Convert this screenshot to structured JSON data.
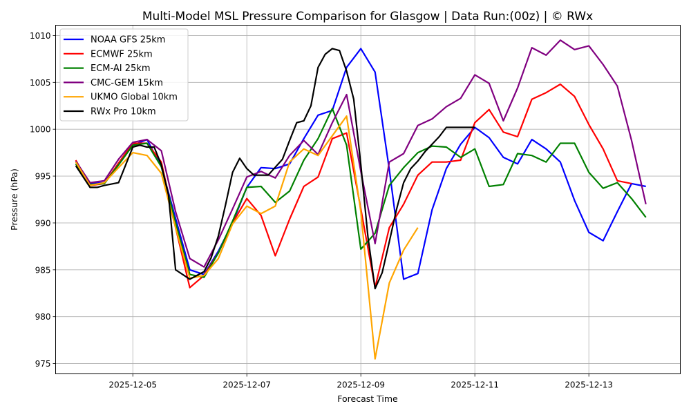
{
  "chart_data": {
    "type": "line",
    "title": "Multi-Model MSL Pressure Comparison for Glasgow | Data Run:(00z) | © RWx",
    "xlabel": "Forecast Time",
    "ylabel": "Pressure (hPa)",
    "x_unit": "hours since 2025-12-04 00:00",
    "xlim": [
      -8.5,
      254.5
    ],
    "ylim": [
      973.9,
      1011.1
    ],
    "grid": true,
    "legend_position": "top-left",
    "x_ticks": [
      {
        "hours": 24,
        "label": "2025-12-05"
      },
      {
        "hours": 72,
        "label": "2025-12-07"
      },
      {
        "hours": 120,
        "label": "2025-12-09"
      },
      {
        "hours": 168,
        "label": "2025-12-11"
      },
      {
        "hours": 216,
        "label": "2025-12-13"
      }
    ],
    "y_ticks": [
      975,
      980,
      985,
      990,
      995,
      1000,
      1005,
      1010
    ],
    "series": [
      {
        "name": "NOAA GFS 25km",
        "color": "#0000ff",
        "step_hours": 6,
        "values": [
          996.3,
          994.2,
          994.3,
          996.3,
          998.3,
          998.9,
          996.0,
          990.5,
          985.0,
          984.5,
          987.0,
          990.0,
          993.8,
          995.9,
          995.8,
          996.3,
          999.0,
          1001.5,
          1002.0,
          1006.6,
          1008.6,
          1006.1,
          995.7,
          984.0,
          984.6,
          991.4,
          995.8,
          998.4,
          1000.2,
          999.1,
          997.0,
          996.3,
          998.9,
          997.9,
          996.5,
          992.4,
          989.0,
          988.1,
          991.2,
          994.2,
          993.9
        ]
      },
      {
        "name": "ECMWF 25km",
        "color": "#ff0000",
        "step_hours": 6,
        "values": [
          996.7,
          994.0,
          994.2,
          996.4,
          998.5,
          998.5,
          996.5,
          989.5,
          983.1,
          984.4,
          986.8,
          990.0,
          992.6,
          990.8,
          986.5,
          990.4,
          993.9,
          994.9,
          999.0,
          999.6,
          991.5,
          983.1,
          989.5,
          992.0,
          995.1,
          996.5,
          996.5,
          996.7,
          1000.7,
          1002.1,
          999.7,
          999.2,
          1003.2,
          1003.9,
          1004.8,
          1003.5,
          1000.5,
          997.9,
          994.5,
          994.2
        ]
      },
      {
        "name": "ECM-AI 25km",
        "color": "#008000",
        "step_hours": 6,
        "values": [
          996.3,
          994.1,
          994.2,
          996.2,
          998.3,
          998.5,
          996.0,
          990.0,
          984.5,
          984.2,
          986.8,
          990.2,
          993.8,
          993.9,
          992.2,
          993.4,
          996.7,
          999.0,
          1002.2,
          998.3,
          987.2,
          988.9,
          994.0,
          995.9,
          997.5,
          998.2,
          998.1,
          997.0,
          997.9,
          993.9,
          994.1,
          997.4,
          997.2,
          996.5,
          998.5,
          998.5,
          995.4,
          993.7,
          994.3,
          992.6,
          990.6
        ]
      },
      {
        "name": "CMC-GEM 15km",
        "color": "#800080",
        "step_hours": 6,
        "values": [
          996.6,
          994.3,
          994.5,
          996.8,
          998.6,
          998.9,
          997.7,
          991.2,
          986.2,
          985.3,
          988.2,
          991.5,
          994.9,
          995.5,
          994.8,
          997.2,
          998.8,
          997.3,
          1000.7,
          1003.7,
          995.5,
          987.8,
          996.5,
          997.4,
          1000.4,
          1001.1,
          1002.4,
          1003.3,
          1005.8,
          1004.9,
          1000.9,
          1004.4,
          1008.7,
          1007.9,
          1009.5,
          1008.5,
          1008.9,
          1006.9,
          1004.6,
          998.8,
          992.0
        ]
      },
      {
        "name": "UKMO Global 10km",
        "color": "#ffa500",
        "step_hours": 6,
        "values": [
          996.5,
          994.0,
          994.3,
          995.9,
          997.5,
          997.2,
          995.3,
          989.5,
          984.1,
          984.4,
          986.2,
          989.9,
          991.8,
          991.0,
          991.8,
          996.5,
          997.9,
          997.2,
          999.3,
          1001.4,
          991.2,
          975.5,
          983.6,
          987.1,
          989.5
        ]
      },
      {
        "name": "RWx Pro 10km",
        "color": "#000000",
        "hours": [
          0,
          6,
          9,
          12,
          18,
          21,
          24,
          27,
          30,
          33,
          36,
          39,
          42,
          48,
          54,
          57,
          60,
          63,
          66,
          69,
          72,
          75,
          81,
          87,
          90,
          93,
          96,
          99,
          102,
          105,
          108,
          111,
          114,
          117,
          120,
          123,
          126,
          129,
          132,
          135,
          138,
          141,
          144,
          147,
          150,
          153,
          156,
          159,
          162,
          165,
          168
        ],
        "values": [
          996.1,
          993.8,
          993.8,
          994.0,
          994.3,
          996.2,
          998.1,
          998.3,
          998.1,
          998.1,
          996.2,
          993.0,
          985.0,
          984.0,
          984.8,
          986.3,
          988.6,
          991.9,
          995.4,
          996.9,
          995.8,
          995.1,
          995.1,
          996.8,
          998.8,
          1000.7,
          1000.9,
          1002.5,
          1006.6,
          1008.0,
          1008.6,
          1008.4,
          1006.2,
          1003.2,
          996.2,
          988.5,
          983.0,
          984.7,
          988.0,
          991.4,
          994.3,
          995.8,
          996.6,
          997.6,
          998.4,
          999.2,
          1000.2,
          1000.2,
          1000.2,
          1000.2,
          1000.2
        ]
      }
    ]
  }
}
